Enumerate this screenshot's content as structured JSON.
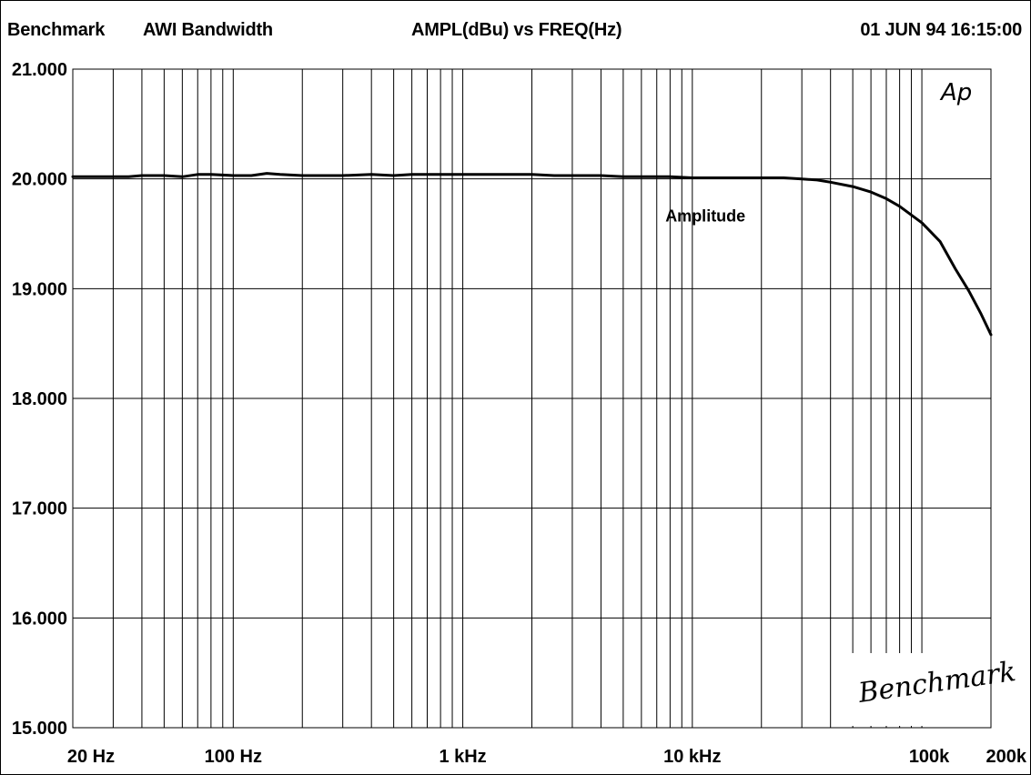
{
  "header": {
    "brand": "Benchmark",
    "test_name": "AWI Bandwidth",
    "plot_title": "AMPL(dBu) vs FREQ(Hz)",
    "timestamp": "01 JUN 94 16:15:00"
  },
  "watermark": {
    "ap_logo": "Ap",
    "signature": "Benchmark"
  },
  "chart_data": {
    "type": "line",
    "title": "AMPL(dBu) vs FREQ(Hz)",
    "xlabel": "",
    "ylabel": "",
    "x_scale": "log",
    "xlim": [
      20,
      200000
    ],
    "ylim": [
      15.0,
      21.0
    ],
    "grid": true,
    "x_tick_labels": [
      {
        "value": 20,
        "label": "20 Hz"
      },
      {
        "value": 100,
        "label": "100 Hz"
      },
      {
        "value": 1000,
        "label": "1 kHz"
      },
      {
        "value": 10000,
        "label": "10 kHz"
      },
      {
        "value": 100000,
        "label": "100k"
      },
      {
        "value": 200000,
        "label": "200k"
      }
    ],
    "y_tick_labels": [
      {
        "value": 21.0,
        "label": "21.000"
      },
      {
        "value": 20.0,
        "label": "20.000"
      },
      {
        "value": 19.0,
        "label": "19.000"
      },
      {
        "value": 18.0,
        "label": "18.000"
      },
      {
        "value": 17.0,
        "label": "17.000"
      },
      {
        "value": 16.0,
        "label": "16.000"
      },
      {
        "value": 15.0,
        "label": "15.000"
      }
    ],
    "series": [
      {
        "name": "Amplitude",
        "x": [
          20,
          25,
          30,
          35,
          40,
          50,
          60,
          70,
          80,
          100,
          120,
          140,
          160,
          200,
          250,
          300,
          400,
          500,
          600,
          800,
          1000,
          1200,
          1500,
          2000,
          2500,
          3000,
          4000,
          5000,
          6000,
          7000,
          8000,
          10000,
          12000,
          15000,
          20000,
          25000,
          30000,
          35000,
          40000,
          50000,
          60000,
          70000,
          80000,
          100000,
          120000,
          140000,
          160000,
          180000,
          200000
        ],
        "y": [
          20.02,
          20.02,
          20.02,
          20.02,
          20.03,
          20.03,
          20.02,
          20.04,
          20.04,
          20.03,
          20.03,
          20.05,
          20.04,
          20.03,
          20.03,
          20.03,
          20.04,
          20.03,
          20.04,
          20.04,
          20.04,
          20.04,
          20.04,
          20.04,
          20.03,
          20.03,
          20.03,
          20.02,
          20.02,
          20.02,
          20.02,
          20.01,
          20.01,
          20.01,
          20.01,
          20.01,
          20.0,
          19.99,
          19.97,
          19.93,
          19.88,
          19.82,
          19.75,
          19.6,
          19.43,
          19.18,
          18.98,
          18.78,
          18.58
        ]
      }
    ],
    "annotations": [
      {
        "text": "Amplitude",
        "x": 25000,
        "y": 19.63
      }
    ]
  }
}
